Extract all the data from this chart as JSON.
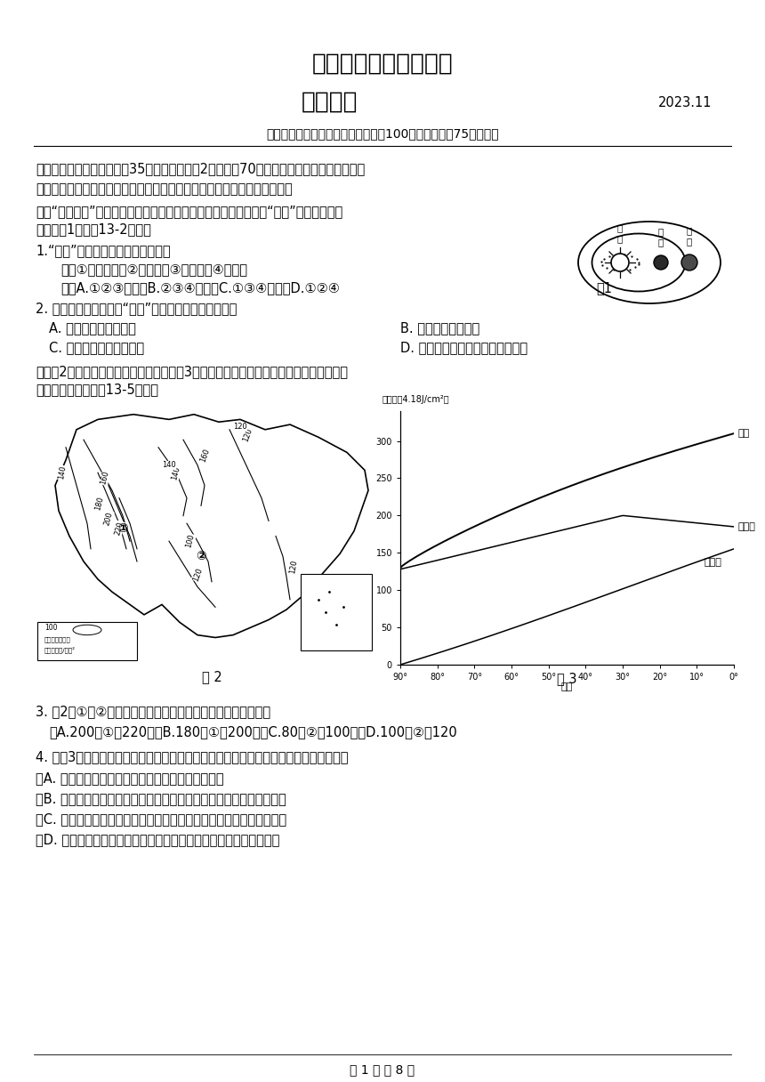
{
  "bg_color": "#ffffff",
  "title1": "高一年级期中学情调查",
  "title2": "地理试题",
  "date": "2023.11",
  "subtitle": "（本试卷分单项选择题和综合题，共100分。考试用时75分钟。）",
  "section1": "一、单项选择题：本大题共35小题，每小题\u00002分，共计70分。在各小题的四个选项中，只",
  "section1b": "有一个选项是最符合题目要求的。请在答题卡上相应方框内填涂正确答案。",
  "para1": "　　“娥娥奔月”是中国古代神话传说，讲述了娥娥吃下仙药后飞到“月宫”（月球）的故",
  "para1b": "事。读图1，完成13-2小题。",
  "q1": "1.“月宫”所属的天体系统是（　　）",
  "q1_options": "　　①河外星系　②銀河系　③太阳系　④地月系",
  "q1_answers": "　　A.①②③　　　B.②③④　　　C.①③④　　　D.①②④",
  "fig1_label": "图1",
  "q2": "2. 目前人类无法居住在“月宫”上的原因不包括（　　）",
  "q2_a": "A. 月球上没有太阳辐射",
  "q2_b": "B. 月球上没有液态水",
  "q2_c": "C. 月球上没有适宜的温度",
  "q2_d": "D. 月球上没有可供生物呼吸的大气",
  "para2": "　　图2为我国年太阳辐射总量分布图，图3为全球地表各纬度的全年和冬、夏半年太阳辐",
  "para2b": "射量图。读图，完成13-5小题。",
  "q3": "3. 图2中①、②两地年太阳辐射总量数值大小正确的是（　　）",
  "q3_answers": "　A.200＜①＜220　　B.180＜①＜200　　C.80＜②＜100　　D.100＜②＜120",
  "q4": "4. 据图3判断下列关于全球冬、夏半年太阳辐射量分布差异的说法中，正确的是（　　）",
  "q4_a": "　A. 夏半年和冬半年辐射量差值随纬度的升高而减少",
  "q4_b": "　B. 夏半年辐射量随纬度升高逐渐减少，纬度越高，太阳辐射总量越少",
  "q4_c": "　C. 冬半年辐射量随纬度升高逐渐增加，纬度越高，太阳辐射总量越多",
  "q4_d": "　D. 夏半年辐射量最大在回归线附近，冬半年辔射量最大在赤道附近",
  "footer": "第 1 页 共 8 页",
  "fig2_label": "图 2",
  "fig3_label": "图 3",
  "yaxis_label": "辐射量（4.18J/cm²）",
  "xaxis_label": "纬度",
  "curve_all": "全年",
  "curve_summer": "夏半年",
  "curve_winter": "冬半年",
  "legend_line1": "年太阳辐射总量",
  "legend_line2": "单位：千卡/厘米²"
}
